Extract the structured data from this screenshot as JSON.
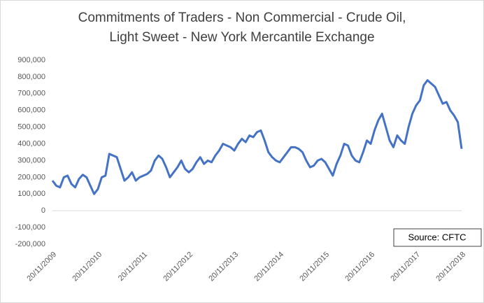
{
  "chart_data": {
    "type": "line",
    "title": [
      "Commitments of Traders - Non Commercial - Crude Oil,",
      "Light Sweet - New York Mercantile Exchange"
    ],
    "annotation": "Source: CFTC",
    "categories": [
      "20/11/2009",
      null,
      null,
      null,
      null,
      null,
      null,
      null,
      null,
      null,
      null,
      null,
      "20/11/2010",
      null,
      null,
      null,
      null,
      null,
      null,
      null,
      null,
      null,
      null,
      null,
      "20/11/2011",
      null,
      null,
      null,
      null,
      null,
      null,
      null,
      null,
      null,
      null,
      null,
      "20/11/2012",
      null,
      null,
      null,
      null,
      null,
      null,
      null,
      null,
      null,
      null,
      null,
      "20/11/2013",
      null,
      null,
      null,
      null,
      null,
      null,
      null,
      null,
      null,
      null,
      null,
      "20/11/2014",
      null,
      null,
      null,
      null,
      null,
      null,
      null,
      null,
      null,
      null,
      null,
      "20/11/2015",
      null,
      null,
      null,
      null,
      null,
      null,
      null,
      null,
      null,
      null,
      null,
      "20/11/2016",
      null,
      null,
      null,
      null,
      null,
      null,
      null,
      null,
      null,
      null,
      null,
      "20/11/2017",
      null,
      null,
      null,
      null,
      null,
      null,
      null,
      null,
      null,
      null,
      null,
      "20/11/2018"
    ],
    "series": [
      {
        "name": "Non Commercial",
        "color": "#4472c4",
        "values": [
          180000,
          150000,
          140000,
          200000,
          210000,
          160000,
          140000,
          190000,
          215000,
          200000,
          150000,
          100000,
          130000,
          200000,
          210000,
          340000,
          330000,
          320000,
          250000,
          180000,
          200000,
          230000,
          180000,
          200000,
          210000,
          220000,
          240000,
          300000,
          330000,
          310000,
          260000,
          200000,
          230000,
          260000,
          300000,
          250000,
          230000,
          250000,
          290000,
          320000,
          280000,
          300000,
          290000,
          330000,
          360000,
          400000,
          390000,
          380000,
          360000,
          400000,
          430000,
          410000,
          450000,
          440000,
          470000,
          480000,
          420000,
          350000,
          320000,
          300000,
          290000,
          320000,
          350000,
          380000,
          380000,
          370000,
          350000,
          300000,
          260000,
          270000,
          300000,
          310000,
          290000,
          250000,
          210000,
          280000,
          330000,
          400000,
          390000,
          330000,
          300000,
          290000,
          350000,
          420000,
          400000,
          480000,
          540000,
          580000,
          500000,
          420000,
          380000,
          450000,
          420000,
          400000,
          500000,
          580000,
          630000,
          660000,
          750000,
          780000,
          760000,
          740000,
          690000,
          640000,
          650000,
          600000,
          570000,
          530000,
          370000
        ]
      }
    ],
    "ylim": [
      -200000,
      900000
    ],
    "yticks": [
      {
        "value": -200000,
        "label": "-200,000"
      },
      {
        "value": -100000,
        "label": "-100,000"
      },
      0,
      {
        "value": 100000,
        "label": "100,000"
      },
      {
        "value": 200000,
        "label": "200,000"
      },
      {
        "value": 300000,
        "label": "300,000"
      },
      {
        "value": 400000,
        "label": "400,000"
      },
      {
        "value": 500000,
        "label": "500,000"
      },
      {
        "value": 600000,
        "label": "600,000"
      },
      {
        "value": 700000,
        "label": "700,000"
      },
      {
        "value": 800000,
        "label": "800,000"
      },
      {
        "value": 900000,
        "label": "900,000"
      }
    ],
    "grid": false
  }
}
